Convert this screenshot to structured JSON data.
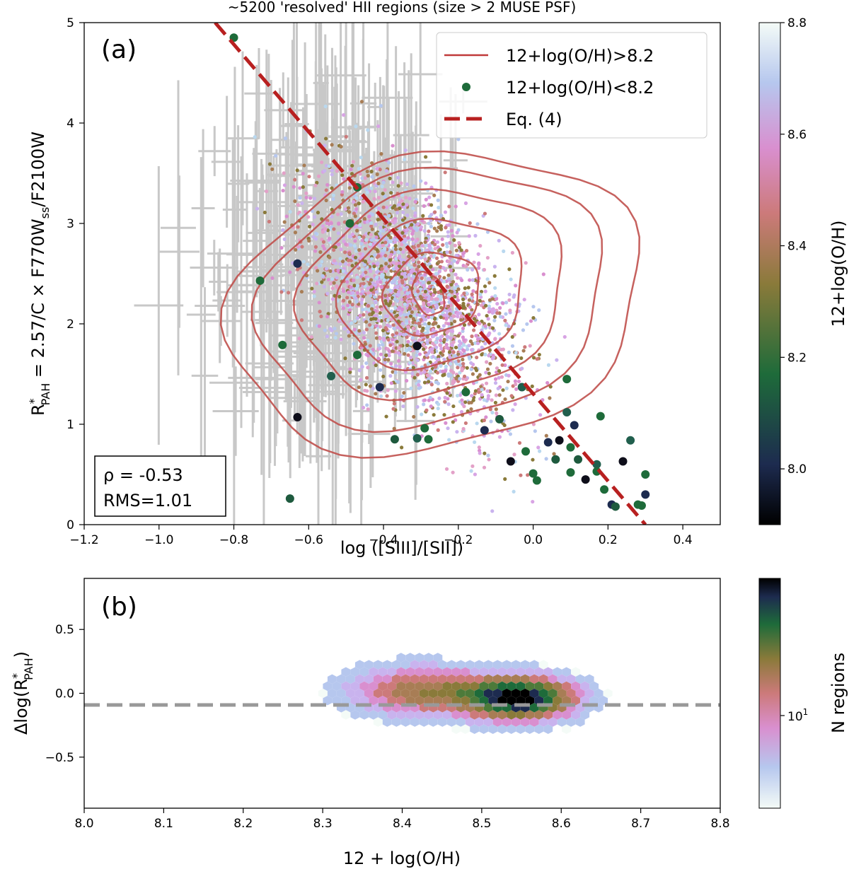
{
  "title": "~5200 'resolved' HII regions (size > 2 MUSE PSF)",
  "panel_a": {
    "label": "(a)",
    "xlabel": "log ([SIII]/[SII])",
    "ylabel": "R*PAH = 2.57/C × F770Wss/F2100W",
    "ylabel_parts": [
      "R",
      "*",
      "PAH",
      " = 2.57/C × F770W",
      "ss",
      "/F2100W"
    ],
    "x_ticks": [
      "−1.2",
      "−1.0",
      "−0.8",
      "−0.6",
      "−0.4",
      "−0.2",
      "0.0",
      "0.2",
      "0.4"
    ],
    "y_ticks": [
      "0",
      "1",
      "2",
      "3",
      "4",
      "5"
    ],
    "stats": {
      "rho": "ρ = -0.53",
      "rms": "RMS=1.01"
    },
    "legend": [
      {
        "label": "12+log(O/H)>8.2",
        "kind": "line",
        "color": "#c03a3a"
      },
      {
        "label": "12+log(O/H)<8.2",
        "kind": "marker",
        "color": "#1e6b3a"
      },
      {
        "label": "Eq. (4)",
        "kind": "dashed",
        "color": "#b82020"
      }
    ],
    "colorbar": {
      "label": "12+log(O/H)",
      "ticks": [
        "8.0",
        "8.2",
        "8.4",
        "8.6",
        "8.8"
      ]
    }
  },
  "panel_b": {
    "label": "(b)",
    "xlabel": "12 + log(O/H)",
    "ylabel": "Δlog(R*PAH)",
    "ylabel_parts": [
      "Δlog(R",
      "*",
      "PAH",
      ")"
    ],
    "x_ticks": [
      "8.0",
      "8.1",
      "8.2",
      "8.3",
      "8.4",
      "8.5",
      "8.6",
      "8.7",
      "8.8"
    ],
    "y_ticks": [
      "0.5",
      "0.0",
      "−0.5"
    ],
    "colorbar": {
      "label": "N regions",
      "tick": "10",
      "tick_exp": "1"
    }
  },
  "chart_data": [
    {
      "type": "scatter",
      "xlim": [
        -1.2,
        0.5
      ],
      "ylim": [
        0,
        5
      ],
      "series": [
        {
          "name": "12+log(O/H)<8.2",
          "x": [
            -0.8,
            -0.73,
            -0.67,
            -0.63,
            -0.65,
            -0.63,
            -0.54,
            -0.49,
            -0.47,
            -0.47,
            -0.41,
            -0.37,
            -0.31,
            -0.31,
            -0.29,
            -0.28,
            -0.18,
            -0.13,
            -0.09,
            -0.06,
            -0.03,
            -0.02,
            0.0,
            0.01,
            0.04,
            0.06,
            0.07,
            0.09,
            0.09,
            0.1,
            0.1,
            0.11,
            0.12,
            0.14,
            0.17,
            0.17,
            0.18,
            0.19,
            0.21,
            0.22,
            0.24,
            0.26,
            0.28,
            0.29,
            0.3,
            0.3
          ],
          "y": [
            4.85,
            2.43,
            1.79,
            2.6,
            0.26,
            1.07,
            1.48,
            3.0,
            1.69,
            3.36,
            1.37,
            0.85,
            1.78,
            0.86,
            0.96,
            0.85,
            1.32,
            0.94,
            1.05,
            0.63,
            1.37,
            0.73,
            0.51,
            0.44,
            0.82,
            0.65,
            0.84,
            1.12,
            1.45,
            0.77,
            0.52,
            0.99,
            0.65,
            0.45,
            0.6,
            0.53,
            1.08,
            0.35,
            0.2,
            0.18,
            0.63,
            0.84,
            0.2,
            0.19,
            0.5,
            0.3
          ]
        },
        {
          "name": "Eq. (4)",
          "x": [
            -0.85,
            0.3
          ],
          "y": [
            5.0,
            0.0
          ]
        }
      ]
    },
    {
      "type": "heatmap",
      "xlim": [
        8.0,
        8.8
      ],
      "ylim": [
        -0.9,
        0.9
      ],
      "xlabel": "12 + log(O/H)",
      "bins": [
        {
          "x": 8.55,
          "y": -0.05,
          "n": 60
        },
        {
          "x": 8.54,
          "y": 0.0,
          "n": 50
        },
        {
          "x": 8.57,
          "y": -0.08,
          "n": 40
        },
        {
          "x": 8.52,
          "y": -0.08,
          "n": 30
        },
        {
          "x": 8.59,
          "y": 0.02,
          "n": 25
        },
        {
          "x": 8.5,
          "y": 0.05,
          "n": 20
        },
        {
          "x": 8.45,
          "y": 0.0,
          "n": 12
        },
        {
          "x": 8.4,
          "y": 0.05,
          "n": 8
        },
        {
          "x": 8.35,
          "y": -0.05,
          "n": 5
        },
        {
          "x": 8.3,
          "y": 0.1,
          "n": 3
        },
        {
          "x": 8.65,
          "y": 0.0,
          "n": 6
        },
        {
          "x": 8.7,
          "y": -0.05,
          "n": 2
        }
      ]
    }
  ]
}
